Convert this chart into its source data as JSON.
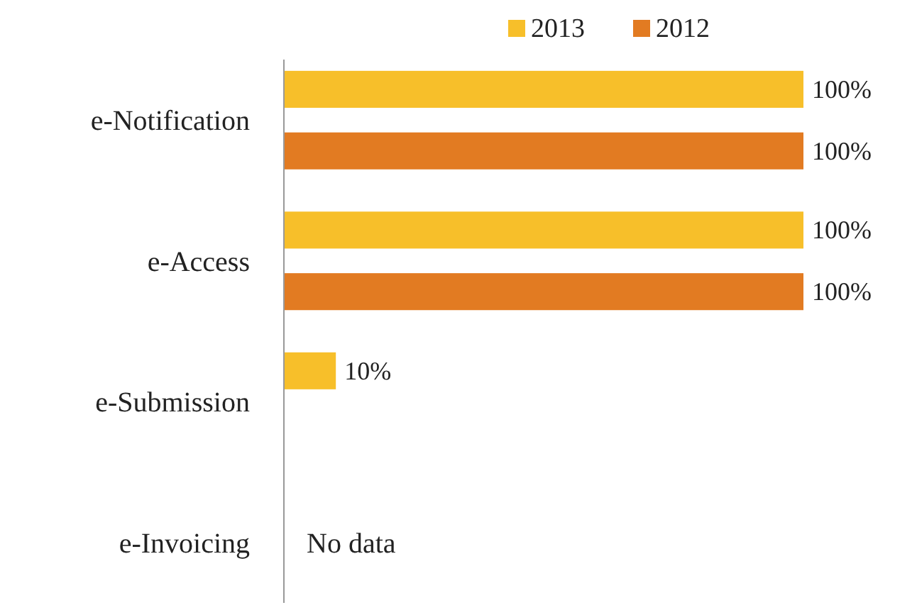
{
  "chart_data": {
    "type": "bar",
    "orientation": "horizontal",
    "categories": [
      "e-Notification",
      "e-Access",
      "e-Submission",
      "e-Invoicing"
    ],
    "series": [
      {
        "name": "2013",
        "color": "#f7bf2a",
        "values": [
          100,
          100,
          10,
          null
        ],
        "value_labels": [
          "100%",
          "100%",
          "10%",
          null
        ]
      },
      {
        "name": "2012",
        "color": "#e27b22",
        "values": [
          100,
          100,
          null,
          null
        ],
        "value_labels": [
          "100%",
          "100%",
          null,
          null
        ]
      }
    ],
    "legend": "top",
    "annotations": [
      "No data"
    ]
  }
}
